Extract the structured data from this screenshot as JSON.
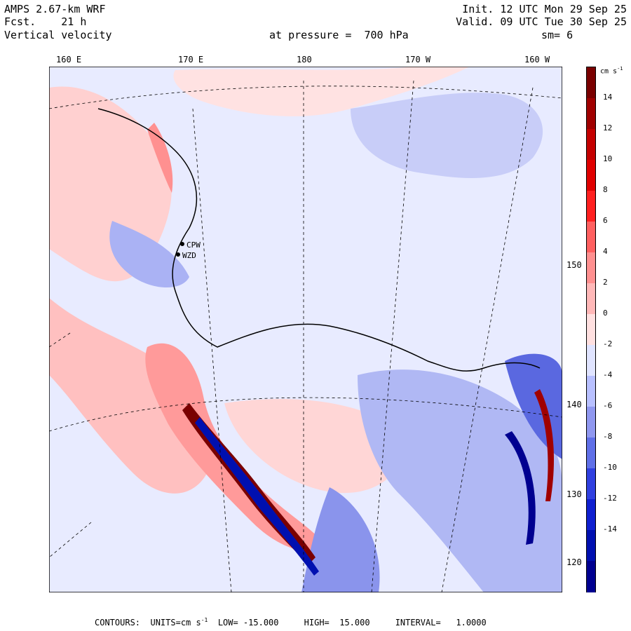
{
  "header": {
    "model": "AMPS 2.67-km WRF",
    "forecast": "Fcst.    21 h",
    "field": "Vertical velocity",
    "init": "Init. 12 UTC Mon 29 Sep 25",
    "valid": "Valid. 09 UTC Tue 30 Sep 25",
    "pressure": "at pressure =  700 hPa",
    "smoothing": "sm= 6"
  },
  "lon_labels": [
    "160 E",
    "170 E",
    "180",
    "170 W",
    "160 W"
  ],
  "lat_labels": [
    "150 W",
    "140 W",
    "130 W",
    "120 W"
  ],
  "colorbar": {
    "unit": "cm s",
    "unit_exp": "-1",
    "ticks": [
      "14",
      "12",
      "10",
      "8",
      "6",
      "4",
      "2",
      "0",
      "-2",
      "-4",
      "-6",
      "-8",
      "-10",
      "-12",
      "-14"
    ],
    "colors": [
      "#7a0000",
      "#a00000",
      "#c40000",
      "#e00000",
      "#ff2020",
      "#ff6060",
      "#ff9090",
      "#ffb8b8",
      "#ffe0e0",
      "#e0e4ff",
      "#b8c0ff",
      "#9098f0",
      "#6070e8",
      "#3040e0",
      "#1020d0",
      "#0010b0",
      "#000090"
    ]
  },
  "stations": [
    "CPW",
    "WZD"
  ],
  "footer": {
    "contours": "CONTOURS:  UNITS=cm s",
    "unit_exp": "-1",
    "low": "LOW= -15.000",
    "high": "HIGH=  15.000",
    "interval": "INTERVAL=   1.0000"
  }
}
